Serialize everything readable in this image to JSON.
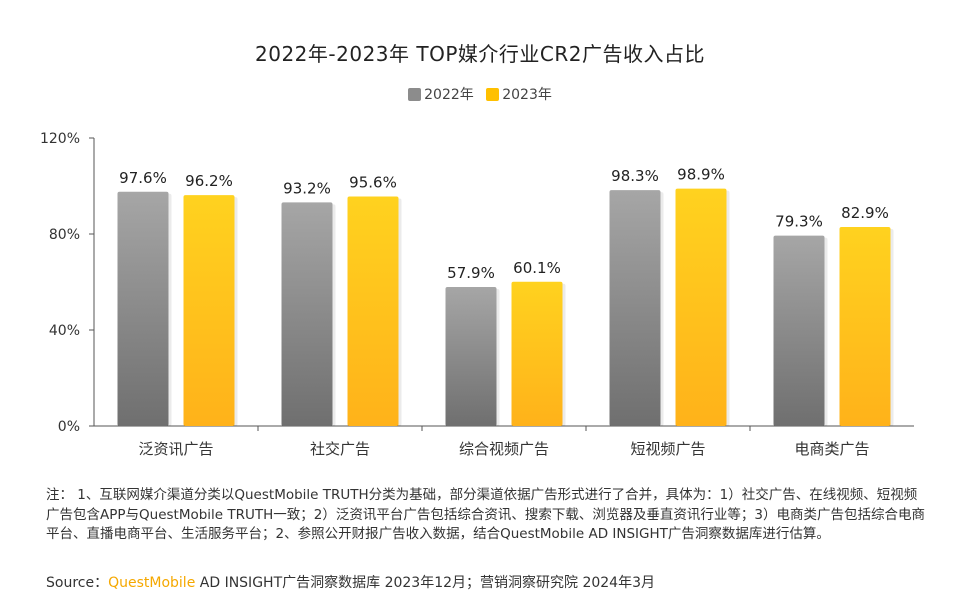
{
  "chart_data": {
    "type": "bar",
    "title": "2022年-2023年 TOP媒介行业CR2广告收入占比",
    "categories": [
      "泛资讯广告",
      "社交广告",
      "综合视频广告",
      "短视频广告",
      "电商类广告"
    ],
    "series": [
      {
        "name": "2022年",
        "values": [
          97.6,
          93.2,
          57.9,
          98.3,
          79.3
        ],
        "labels": [
          "97.6%",
          "93.2%",
          "57.9%",
          "98.3%",
          "79.3%"
        ],
        "color": "#8c8c8c"
      },
      {
        "name": "2023年",
        "values": [
          96.2,
          95.6,
          60.1,
          98.9,
          82.9
        ],
        "labels": [
          "96.2%",
          "95.6%",
          "60.1%",
          "98.9%",
          "82.9%"
        ],
        "color": "#ffc000"
      }
    ],
    "ylim": [
      0,
      120
    ],
    "yticks": [
      0,
      40,
      80,
      120
    ],
    "ytick_labels": [
      "0%",
      "40%",
      "80%",
      "120%"
    ],
    "xlabel": "",
    "ylabel": "",
    "grid": false,
    "legend_position": "top-center"
  },
  "footer": {
    "note": "注： 1、互联网媒介渠道分类以QuestMobile TRUTH分类为基础，部分渠道依据广告形式进行了合并，具体为：1）社交广告、在线视频、短视频广告包含APP与QuestMobile TRUTH一致；2）泛资讯平台广告包括综合资讯、搜索下载、浏览器及垂直资讯行业等；3）电商类广告包括综合电商平台、直播电商平台、生活服务平台；2、参照公开财报广告收入数据，结合QuestMobile AD INSIGHT广告洞察数据库进行估算。",
    "source_prefix": "Source：",
    "source_brand": "QuestMobile",
    "source_rest": " AD INSIGHT广告洞察数据库 2023年12月；营销洞察研究院 2024年3月"
  }
}
